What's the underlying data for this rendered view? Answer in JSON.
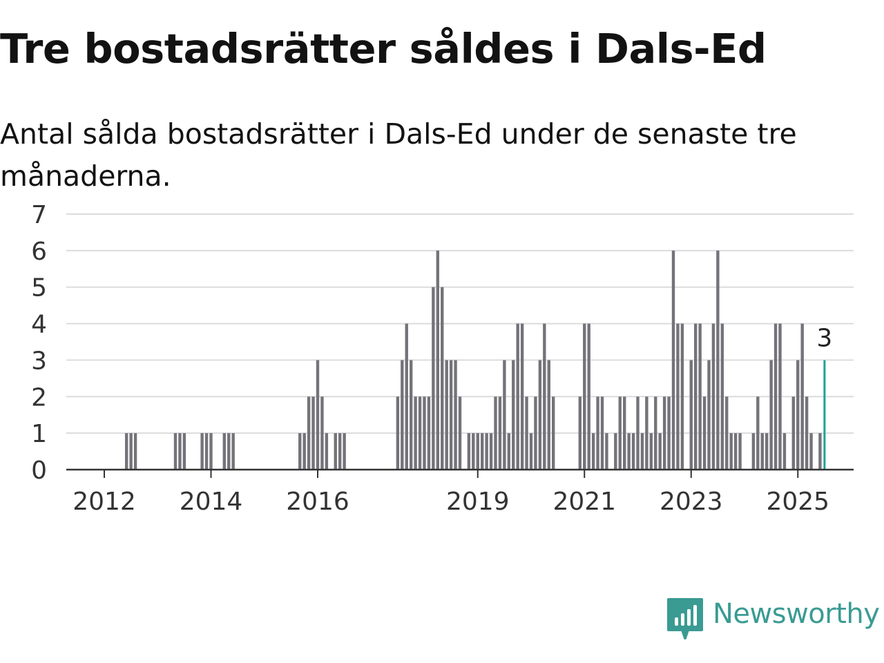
{
  "title": "Tre bostadsrätter såldes i Dals-Ed",
  "subtitle": "Antal sålda bostadsrätter i Dals-Ed under de senaste tre månaderna.",
  "brand": {
    "name": "Newsworthy",
    "icon": "newsworthy-logo-icon",
    "color": "#3a9b93"
  },
  "colors": {
    "bar": "#74737a",
    "highlight": "#1ea196",
    "grid": "#dcdcdc",
    "axis": "#333333"
  },
  "chart_data": {
    "type": "bar",
    "x_unit": "month",
    "xlim": [
      "2011-07",
      "2025-10"
    ],
    "ylim": [
      0,
      7
    ],
    "yticks": [
      0,
      1,
      2,
      3,
      4,
      5,
      6,
      7
    ],
    "xticks": [
      "2012",
      "2014",
      "2016",
      "2019",
      "2021",
      "2023",
      "2025"
    ],
    "grid": true,
    "legend": "none",
    "series": [
      {
        "values": [
          {
            "x": "2012-06",
            "y": 1
          },
          {
            "x": "2012-07",
            "y": 1
          },
          {
            "x": "2012-08",
            "y": 1
          },
          {
            "x": "2013-05",
            "y": 1
          },
          {
            "x": "2013-06",
            "y": 1
          },
          {
            "x": "2013-07",
            "y": 1
          },
          {
            "x": "2013-11",
            "y": 1
          },
          {
            "x": "2013-12",
            "y": 1
          },
          {
            "x": "2014-01",
            "y": 1
          },
          {
            "x": "2014-04",
            "y": 1
          },
          {
            "x": "2014-05",
            "y": 1
          },
          {
            "x": "2014-06",
            "y": 1
          },
          {
            "x": "2015-09",
            "y": 1
          },
          {
            "x": "2015-10",
            "y": 1
          },
          {
            "x": "2015-11",
            "y": 2
          },
          {
            "x": "2015-12",
            "y": 2
          },
          {
            "x": "2016-01",
            "y": 3
          },
          {
            "x": "2016-02",
            "y": 2
          },
          {
            "x": "2016-03",
            "y": 1
          },
          {
            "x": "2016-05",
            "y": 1
          },
          {
            "x": "2016-06",
            "y": 1
          },
          {
            "x": "2016-07",
            "y": 1
          },
          {
            "x": "2017-07",
            "y": 2
          },
          {
            "x": "2017-08",
            "y": 3
          },
          {
            "x": "2017-09",
            "y": 4
          },
          {
            "x": "2017-10",
            "y": 3
          },
          {
            "x": "2017-11",
            "y": 2
          },
          {
            "x": "2017-12",
            "y": 2
          },
          {
            "x": "2018-01",
            "y": 2
          },
          {
            "x": "2018-02",
            "y": 2
          },
          {
            "x": "2018-03",
            "y": 5
          },
          {
            "x": "2018-04",
            "y": 6
          },
          {
            "x": "2018-05",
            "y": 5
          },
          {
            "x": "2018-06",
            "y": 3
          },
          {
            "x": "2018-07",
            "y": 3
          },
          {
            "x": "2018-08",
            "y": 3
          },
          {
            "x": "2018-09",
            "y": 2
          },
          {
            "x": "2018-11",
            "y": 1
          },
          {
            "x": "2018-12",
            "y": 1
          },
          {
            "x": "2019-01",
            "y": 1
          },
          {
            "x": "2019-02",
            "y": 1
          },
          {
            "x": "2019-03",
            "y": 1
          },
          {
            "x": "2019-04",
            "y": 1
          },
          {
            "x": "2019-05",
            "y": 2
          },
          {
            "x": "2019-06",
            "y": 2
          },
          {
            "x": "2019-07",
            "y": 3
          },
          {
            "x": "2019-08",
            "y": 1
          },
          {
            "x": "2019-09",
            "y": 3
          },
          {
            "x": "2019-10",
            "y": 4
          },
          {
            "x": "2019-11",
            "y": 4
          },
          {
            "x": "2019-12",
            "y": 2
          },
          {
            "x": "2020-01",
            "y": 1
          },
          {
            "x": "2020-02",
            "y": 2
          },
          {
            "x": "2020-03",
            "y": 3
          },
          {
            "x": "2020-04",
            "y": 4
          },
          {
            "x": "2020-05",
            "y": 3
          },
          {
            "x": "2020-06",
            "y": 2
          },
          {
            "x": "2020-12",
            "y": 2
          },
          {
            "x": "2021-01",
            "y": 4
          },
          {
            "x": "2021-02",
            "y": 4
          },
          {
            "x": "2021-03",
            "y": 1
          },
          {
            "x": "2021-04",
            "y": 2
          },
          {
            "x": "2021-05",
            "y": 2
          },
          {
            "x": "2021-06",
            "y": 1
          },
          {
            "x": "2021-08",
            "y": 1
          },
          {
            "x": "2021-09",
            "y": 2
          },
          {
            "x": "2021-10",
            "y": 2
          },
          {
            "x": "2021-11",
            "y": 1
          },
          {
            "x": "2021-12",
            "y": 1
          },
          {
            "x": "2022-01",
            "y": 2
          },
          {
            "x": "2022-02",
            "y": 1
          },
          {
            "x": "2022-03",
            "y": 2
          },
          {
            "x": "2022-04",
            "y": 1
          },
          {
            "x": "2022-05",
            "y": 2
          },
          {
            "x": "2022-06",
            "y": 1
          },
          {
            "x": "2022-07",
            "y": 2
          },
          {
            "x": "2022-08",
            "y": 2
          },
          {
            "x": "2022-09",
            "y": 6
          },
          {
            "x": "2022-10",
            "y": 4
          },
          {
            "x": "2022-11",
            "y": 4
          },
          {
            "x": "2023-01",
            "y": 3
          },
          {
            "x": "2023-02",
            "y": 4
          },
          {
            "x": "2023-03",
            "y": 4
          },
          {
            "x": "2023-04",
            "y": 2
          },
          {
            "x": "2023-05",
            "y": 3
          },
          {
            "x": "2023-06",
            "y": 4
          },
          {
            "x": "2023-07",
            "y": 6
          },
          {
            "x": "2023-08",
            "y": 4
          },
          {
            "x": "2023-09",
            "y": 2
          },
          {
            "x": "2023-10",
            "y": 1
          },
          {
            "x": "2023-11",
            "y": 1
          },
          {
            "x": "2023-12",
            "y": 1
          },
          {
            "x": "2024-03",
            "y": 1
          },
          {
            "x": "2024-04",
            "y": 2
          },
          {
            "x": "2024-05",
            "y": 1
          },
          {
            "x": "2024-06",
            "y": 1
          },
          {
            "x": "2024-07",
            "y": 3
          },
          {
            "x": "2024-08",
            "y": 4
          },
          {
            "x": "2024-09",
            "y": 4
          },
          {
            "x": "2024-10",
            "y": 1
          },
          {
            "x": "2024-12",
            "y": 2
          },
          {
            "x": "2025-01",
            "y": 3
          },
          {
            "x": "2025-02",
            "y": 4
          },
          {
            "x": "2025-03",
            "y": 2
          },
          {
            "x": "2025-04",
            "y": 1
          },
          {
            "x": "2025-06",
            "y": 1
          },
          {
            "x": "2025-07",
            "y": 3
          }
        ]
      }
    ],
    "highlight": {
      "x": "2025-07",
      "y": 3,
      "label": "3"
    }
  }
}
